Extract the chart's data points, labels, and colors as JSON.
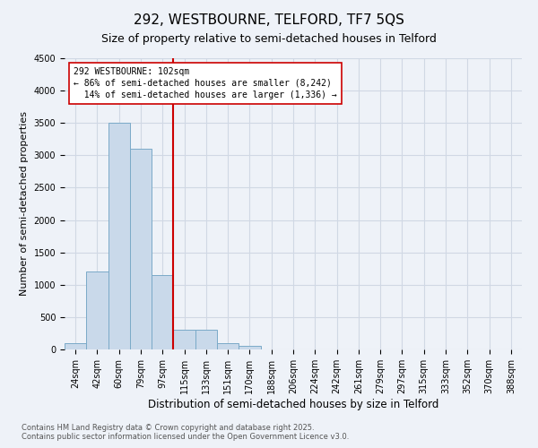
{
  "title": "292, WESTBOURNE, TELFORD, TF7 5QS",
  "subtitle": "Size of property relative to semi-detached houses in Telford",
  "xlabel": "Distribution of semi-detached houses by size in Telford",
  "ylabel": "Number of semi-detached properties",
  "categories": [
    "24sqm",
    "42sqm",
    "60sqm",
    "79sqm",
    "97sqm",
    "115sqm",
    "133sqm",
    "151sqm",
    "170sqm",
    "188sqm",
    "206sqm",
    "224sqm",
    "242sqm",
    "261sqm",
    "279sqm",
    "297sqm",
    "315sqm",
    "333sqm",
    "352sqm",
    "370sqm",
    "388sqm"
  ],
  "values": [
    100,
    1200,
    3500,
    3100,
    1150,
    300,
    300,
    100,
    50,
    5,
    2,
    0,
    0,
    0,
    0,
    0,
    0,
    0,
    0,
    0,
    0
  ],
  "bar_color": "#c9d9ea",
  "bar_edge_color": "#7aaac8",
  "grid_color": "#d0d8e4",
  "background_color": "#eef2f8",
  "vline_x": 4.5,
  "vline_color": "#cc0000",
  "annotation_text_line1": "292 WESTBOURNE: 102sqm",
  "annotation_text_line2": "← 86% of semi-detached houses are smaller (8,242)",
  "annotation_text_line3": "  14% of semi-detached houses are larger (1,336) →",
  "annotation_box_color": "#ffffff",
  "annotation_box_edge": "#cc0000",
  "ylim": [
    0,
    4500
  ],
  "yticks": [
    0,
    500,
    1000,
    1500,
    2000,
    2500,
    3000,
    3500,
    4000,
    4500
  ],
  "footer_line1": "Contains HM Land Registry data © Crown copyright and database right 2025.",
  "footer_line2": "Contains public sector information licensed under the Open Government Licence v3.0.",
  "title_fontsize": 11,
  "subtitle_fontsize": 9,
  "xlabel_fontsize": 8.5,
  "ylabel_fontsize": 8,
  "tick_fontsize": 7,
  "annotation_fontsize": 7,
  "footer_fontsize": 6
}
